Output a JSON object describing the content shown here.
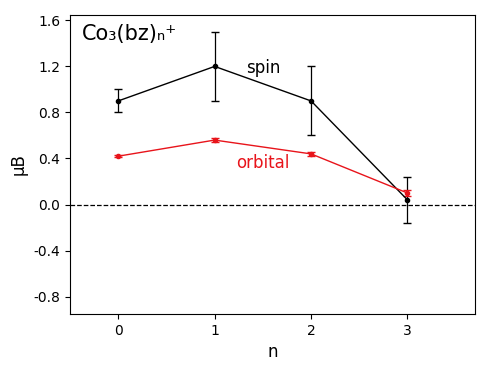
{
  "chart_data": {
    "type": "line",
    "title": "Co₃(bz)ₙ⁺",
    "x_label": "n",
    "y_label": "μB",
    "x": [
      0,
      1,
      2,
      3
    ],
    "series": [
      {
        "name": "spin",
        "color": "#000000",
        "marker": "o",
        "line_style": "solid",
        "values": [
          0.9,
          1.2,
          0.9,
          0.04
        ],
        "error": [
          0.1,
          0.3,
          0.3,
          0.2
        ]
      },
      {
        "name": "orbital",
        "color": "#e8141b",
        "marker": "o",
        "line_style": "solid",
        "values": [
          0.42,
          0.56,
          0.44,
          0.1
        ],
        "error": [
          0.01,
          0.02,
          0.02,
          0.03
        ]
      }
    ],
    "reference_line": 0.0,
    "xlim": [
      -0.5,
      3.7
    ],
    "ylim": [
      -0.95,
      1.65
    ],
    "xticks": [
      0,
      1,
      2,
      3
    ],
    "yticks": [
      {
        "value": -0.8,
        "label": "-0.8"
      },
      {
        "value": -0.4,
        "label": "-0.4"
      },
      {
        "value": 0.0,
        "label": "0.0"
      },
      {
        "value": 0.4,
        "label": "0.4"
      },
      {
        "value": 0.8,
        "label": "0.8"
      },
      {
        "value": 1.2,
        "label": "1.2"
      },
      {
        "value": 1.6,
        "label": "1.6"
      }
    ],
    "grid": false
  }
}
